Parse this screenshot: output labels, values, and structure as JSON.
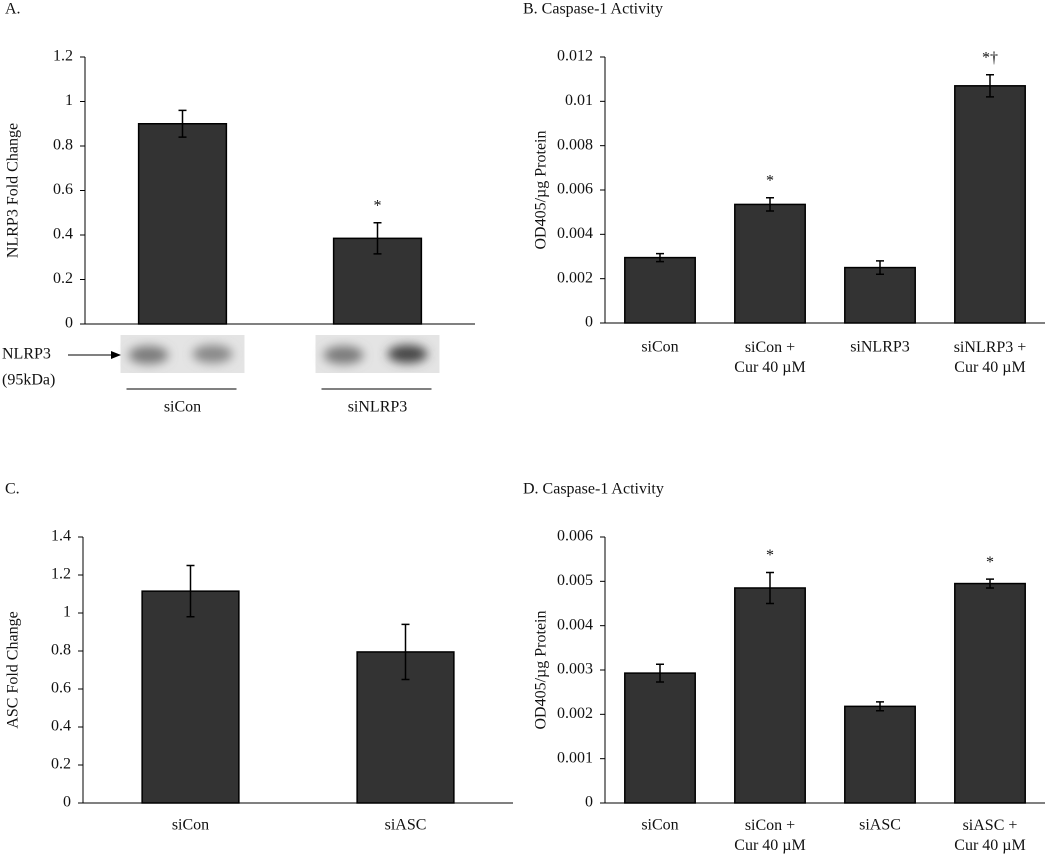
{
  "chart_data": [
    {
      "type": "bar",
      "title": "A.",
      "y_label": "NLRP3 Fold Change",
      "categories": [
        "siCon",
        "siNLRP3"
      ],
      "values": [
        0.9,
        0.385
      ],
      "errors": [
        0.06,
        0.07
      ],
      "significance": [
        null,
        "*"
      ],
      "color": "#333333",
      "ylim": [
        0,
        1.2
      ],
      "yticks": [
        0,
        0.2,
        0.4,
        0.6,
        0.8,
        1,
        1.2
      ],
      "blot_label": "NLRP3",
      "blot_size": "(95kDa)"
    },
    {
      "type": "bar",
      "title": "B. Caspase-1 Activity",
      "y_label": "OD405/µg Protein",
      "categories": [
        "siCon",
        "siCon + Cur 40 µM",
        "siNLRP3",
        "siNLRP3 + Cur 40 µM"
      ],
      "values": [
        0.00295,
        0.00535,
        0.0025,
        0.0107
      ],
      "errors": [
        0.00018,
        0.0003,
        0.0003,
        0.0005
      ],
      "significance": [
        null,
        "*",
        null,
        "*†"
      ],
      "color": "#333333",
      "ylim": [
        0,
        0.012
      ],
      "yticks": [
        0,
        0.002,
        0.004,
        0.006,
        0.008,
        0.01,
        0.012
      ]
    },
    {
      "type": "bar",
      "title": "C.",
      "y_label": "ASC Fold Change",
      "categories": [
        "siCon",
        "siASC"
      ],
      "values": [
        1.115,
        0.795
      ],
      "errors": [
        0.135,
        0.145
      ],
      "color": "#333333",
      "ylim": [
        0,
        1.4
      ],
      "yticks": [
        0,
        0.2,
        0.4,
        0.6,
        0.8,
        1,
        1.2,
        1.4
      ]
    },
    {
      "type": "bar",
      "title": "D. Caspase-1 Activity",
      "y_label": "OD405/µg Protein",
      "categories": [
        "siCon",
        "siCon + Cur 40 µM",
        "siASC",
        "siASC + Cur 40 µM"
      ],
      "values": [
        0.00293,
        0.00485,
        0.00218,
        0.00495
      ],
      "errors": [
        0.0002,
        0.00035,
        0.0001,
        0.0001
      ],
      "significance": [
        null,
        "*",
        null,
        "*"
      ],
      "color": "#333333",
      "ylim": [
        0,
        0.006
      ],
      "yticks": [
        0,
        0.001,
        0.002,
        0.003,
        0.004,
        0.005,
        0.006
      ]
    }
  ]
}
